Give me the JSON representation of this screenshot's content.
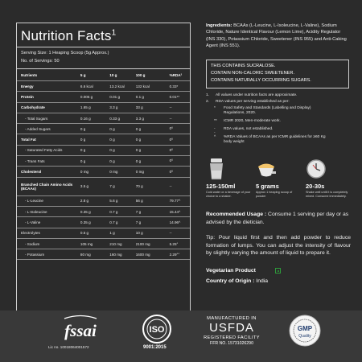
{
  "nutrition": {
    "title": "Nutrition Facts",
    "title_sup": "1",
    "serving_size": "Serving Size: 1 Heaping Scoop (5g Approx.)",
    "servings": "No. of Servings: 50",
    "headers": [
      "Nutrients",
      "5 g",
      "10 g",
      "100 g",
      "%RDA²"
    ],
    "rows": [
      {
        "label": "Energy",
        "v1": "6.6 kcal",
        "v2": "13.2 kcal",
        "v3": "132 kcal",
        "v4": "0.33*",
        "bold": true
      },
      {
        "label": "Protein",
        "v1": "0.005 g",
        "v2": "0.01 g",
        "v3": "0.1 g",
        "v4": "0.01**",
        "bold": true
      },
      {
        "label": "Carbohydrate",
        "v1": "1.65 g",
        "v2": "3.3 g",
        "v3": "33 g",
        "v4": "--",
        "bold": true
      },
      {
        "label": "- Total Sugars",
        "v1": "0.16 g",
        "v2": "0.33 g",
        "v3": "3.3 g",
        "v4": "--",
        "indent": true
      },
      {
        "label": "- Added Sugars",
        "v1": "0 g",
        "v2": "0 g",
        "v3": "0 g",
        "v4": "0⁰",
        "indent": true
      },
      {
        "label": "Total Fat",
        "v1": "0 g",
        "v2": "0 g",
        "v3": "0 g",
        "v4": "0⁰",
        "bold": true
      },
      {
        "label": "- Saturated Fatty Acids",
        "v1": "0 g",
        "v2": "0 g",
        "v3": "0 g",
        "v4": "0⁰",
        "indent": true
      },
      {
        "label": "- Trans Fats",
        "v1": "0 g",
        "v2": "0 g",
        "v3": "0 g",
        "v4": "0⁰",
        "indent": true
      },
      {
        "label": "Cholesterol",
        "v1": "0 mg",
        "v2": "0 mg",
        "v3": "0 mg",
        "v4": "0⁰",
        "bold": true
      },
      {
        "label": "Branched Chain Amino Acids (BCAAs)",
        "v1": "3.5 g",
        "v2": "7 g",
        "v3": "70 g",
        "v4": "--",
        "bold": true,
        "tall": true
      },
      {
        "label": "- L-Leucine",
        "v1": "2.8 g",
        "v2": "5.6 g",
        "v3": "56 g",
        "v4": "79.77^",
        "indent": true
      },
      {
        "label": "- L-Isoleucine",
        "v1": "0.35 g",
        "v2": "0.7 g",
        "v3": "7 g",
        "v4": "15.44^",
        "indent": true
      },
      {
        "label": "- L-Valine",
        "v1": "0.35 g",
        "v2": "0.7 g",
        "v3": "7 g",
        "v4": "14.96^",
        "indent": true
      },
      {
        "label": "Electrolytes",
        "v1": "0.5 g",
        "v2": "1 g",
        "v3": "10 g",
        "v4": "--",
        "bold": false
      },
      {
        "label": "- Sodium",
        "v1": "105 mg",
        "v2": "210 mg",
        "v3": "2100 mg",
        "v4": "5.25°",
        "indent": true
      },
      {
        "label": "- Potassium",
        "v1": "80 mg",
        "v2": "160 mg",
        "v3": "1600 mg",
        "v4": "2.29°°",
        "indent": true
      }
    ]
  },
  "ingredients": {
    "label": "Ingredients:",
    "text": " BCAAs (L-Leucine, L-Isoleucine, L-Valine), Sodium Chloride, Nature Identical Flavour (Lemon Lime), Acidity Regulator (INS 330), Potassium Chloride, Sweetener (INS 955) and Anti-Caking Agent (INS 551)."
  },
  "warning": {
    "line1": "THIS CONTAINS SUCRALOSE.",
    "line2": "CONTAIN NON-CALORIC SWEETENER.",
    "line3": "CONTAINS NATURALLY OCCURRING SUGARS."
  },
  "notes": [
    {
      "k": "1.",
      "v": "All values under nutrition facts are approximate."
    },
    {
      "k": "2.",
      "v": "RDA values per serving established as per:"
    },
    {
      "k": "*",
      "v": "Food Safety and Standards (Labelling and Display) Regulations, 2020."
    },
    {
      "k": "**",
      "v": "ICMR 2020, Men-moderate work."
    },
    {
      "k": "--",
      "v": "RDA values, not established."
    },
    {
      "k": "^",
      "v": "%RDA Values of BCAAs as per ICMR guidelines for ≥60 Kg body weight"
    }
  ],
  "usage_icons": [
    {
      "value": "125-150ml",
      "desc": "Cold water or a beverage of your choice to a shaker.",
      "icon": "shaker-icon"
    },
    {
      "value": "5 grams",
      "desc": "Approx 1 heaping scoop of powder",
      "icon": "scoop-icon"
    },
    {
      "value": "20-30s",
      "desc": "Shake well until it is completely mixed. Consume immediately.",
      "icon": "clock-icon"
    }
  ],
  "usage": {
    "label": "Recommended Usage :",
    "text": " Consume 1 serving per day or as advised by the dietician."
  },
  "tip": "Tip: Pour liquid first and then add powder to reduce formation of lumps. You can adjust the intensity of flavour by slightly varying the amount of liquid to prepare it.",
  "vegetarian": "Vegetarian Product",
  "origin": {
    "label": "Country of Origin :",
    "value": " India"
  },
  "footer": {
    "fssai_logo": "fssai",
    "fssai_lic": "Lic no. 10018064001572",
    "iso_logo": "ISO",
    "iso_text": "9001:2015",
    "usfda_line1": "MANUFACTURED IN",
    "usfda_line2": "USFDA",
    "usfda_line3": "REGISTERED FACILITY",
    "usfda_line4": "FFR NO. 15731026290",
    "gmp_logo": "GMP Quality"
  },
  "colors": {
    "background": "#2b2b2b",
    "footer": "#393939",
    "border": "#cfcfcf",
    "veg_green": "#2e9b3b"
  }
}
